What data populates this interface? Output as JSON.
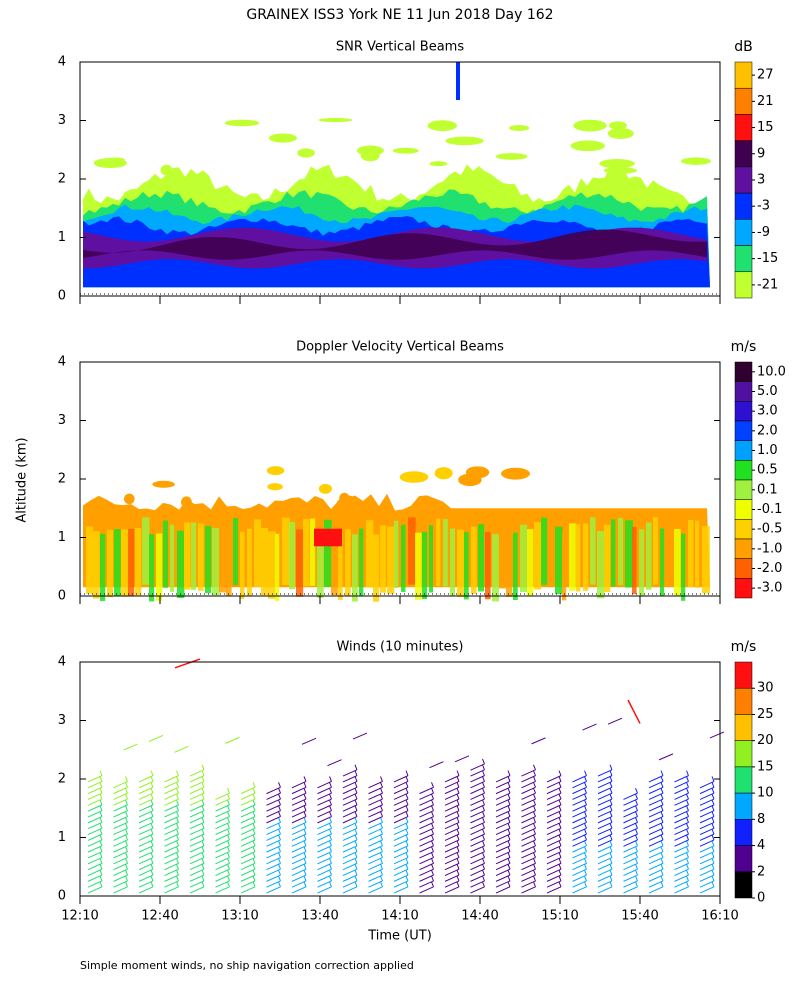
{
  "figure": {
    "title": "GRAINEX ISS3 York NE  11 Jun 2018 Day 162",
    "ylabel": "Altitude (km)",
    "xlabel": "Time (UT)",
    "footnote": "Simple moment winds, no ship navigation correction applied"
  },
  "chart_data": [
    {
      "type": "contour",
      "title": "SNR Vertical Beams",
      "ylim": [
        0,
        4
      ],
      "yticks": [
        0,
        1,
        2,
        3,
        4
      ],
      "colorbar": {
        "unit": "dB",
        "levels": [
          27,
          21,
          15,
          9,
          3,
          -3,
          -9,
          -15,
          -21
        ],
        "colors": [
          "#ffc000",
          "#ff8000",
          "#ff1010",
          "#400050",
          "#6010a0",
          "#0030ff",
          "#00a8ff",
          "#20e070",
          "#c0ff30"
        ]
      }
    },
    {
      "type": "contour",
      "title": "Doppler Velocity Vertical Beams",
      "ylim": [
        0,
        4
      ],
      "yticks": [
        0,
        1,
        2,
        3,
        4
      ],
      "colorbar": {
        "unit": "m/s",
        "levels": [
          {
            "value": 10,
            "label": "10.0"
          },
          {
            "value": 5,
            "label": "5.0"
          },
          {
            "value": 3,
            "label": "3.0"
          },
          {
            "value": 2,
            "label": "2.0"
          },
          {
            "value": 1,
            "label": "1.0"
          },
          0.5,
          0.1,
          -0.1,
          -0.5,
          {
            "value": -1,
            "label": "-1.0"
          },
          {
            "value": -2,
            "label": "-2.0"
          },
          {
            "value": -3,
            "label": "-3.0"
          }
        ],
        "colors": [
          "#300030",
          "#5010a0",
          "#3010d0",
          "#0040ff",
          "#00a0ff",
          "#20e020",
          "#a0f040",
          "#f0ff00",
          "#ffd000",
          "#ffa000",
          "#ff6000",
          "#ff1010"
        ]
      }
    },
    {
      "type": "barbs",
      "title": "Winds (10 minutes)",
      "ylim": [
        0,
        4
      ],
      "yticks": [
        0,
        1,
        2,
        3,
        4
      ],
      "categories": [
        "12:10",
        "12:40",
        "13:10",
        "13:40",
        "14:10",
        "14:40",
        "15:10",
        "15:40",
        "16:10"
      ],
      "colorbar": {
        "unit": "m/s",
        "levels": [
          30,
          25,
          20,
          15,
          10,
          8,
          4,
          2,
          0
        ],
        "colors": [
          "#ff1010",
          "#ff8000",
          "#ffc000",
          "#90f020",
          "#20e070",
          "#00a8ff",
          "#1020ff",
          "#500090",
          "#000000"
        ]
      }
    }
  ]
}
